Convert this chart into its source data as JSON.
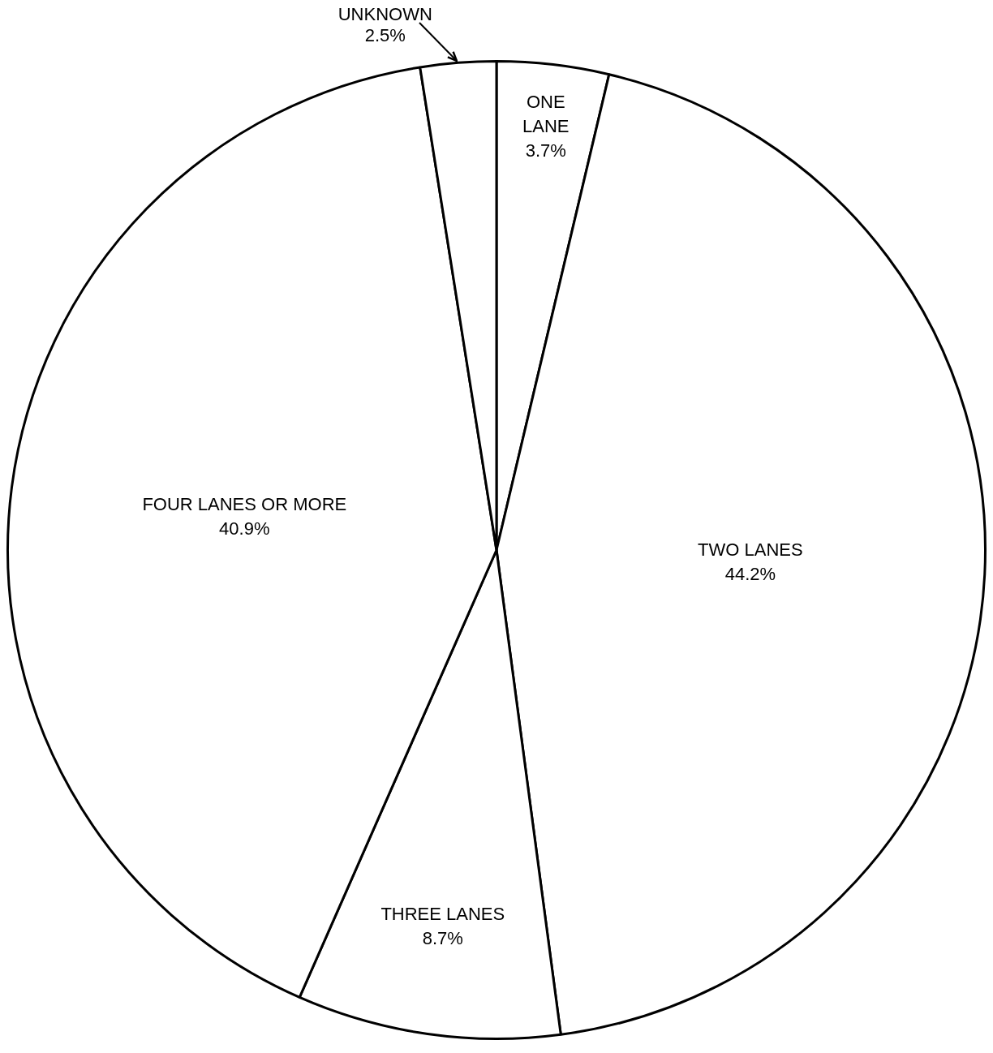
{
  "chart_data": {
    "type": "pie",
    "categories": [
      "ONE LANE",
      "TWO LANES",
      "THREE LANES",
      "FOUR LANES OR MORE",
      "UNKNOWN"
    ],
    "values": [
      3.7,
      44.2,
      8.7,
      40.9,
      2.5
    ],
    "value_labels": [
      "3.7%",
      "44.2%",
      "8.7%",
      "40.9%",
      "2.5%"
    ],
    "colors": [
      "#ffffff",
      "#ffffff",
      "#ffffff",
      "#ffffff",
      "#ffffff"
    ],
    "legend": false
  }
}
